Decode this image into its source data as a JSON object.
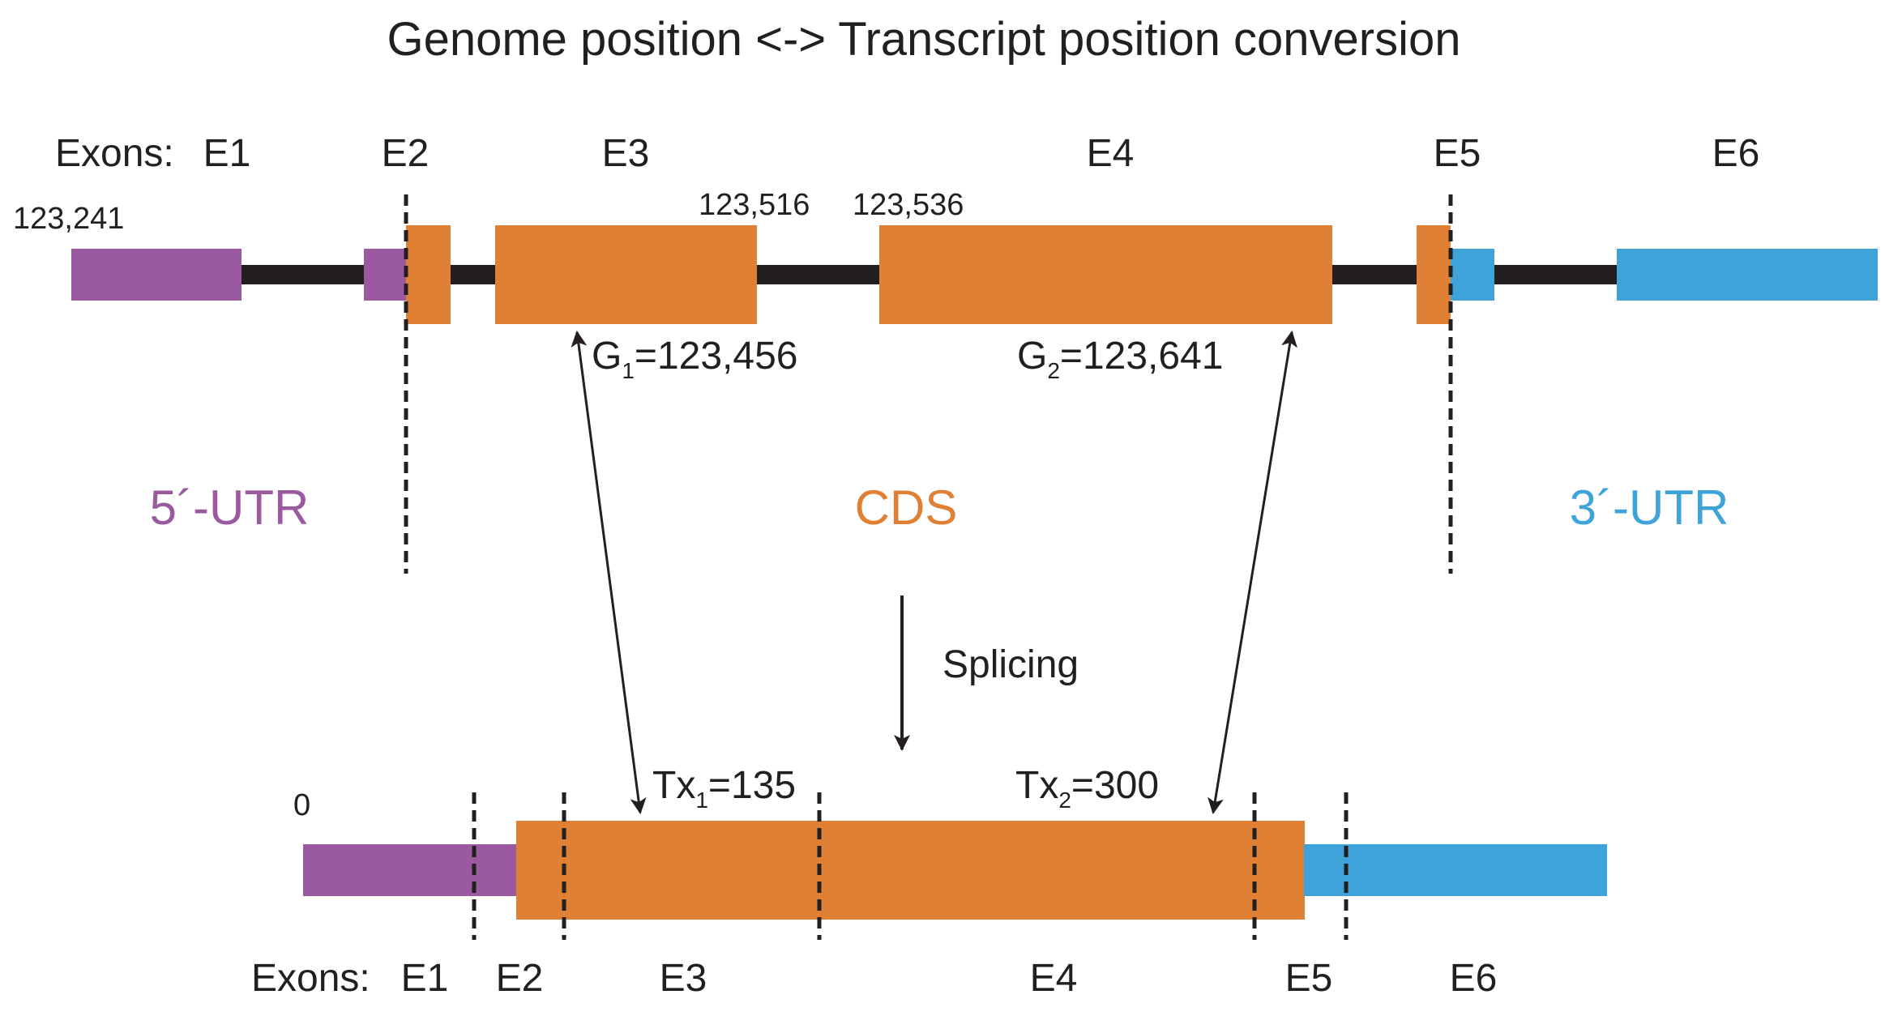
{
  "title": "Genome position <-> Transcript position conversion",
  "colors": {
    "utr5": "#9b59a0",
    "cds": "#e08034",
    "utr3": "#3ea3d9",
    "intron": "#231f20",
    "text": "#231f20"
  },
  "genome": {
    "exons_label": "Exons:",
    "exons": [
      "E1",
      "E2",
      "E3",
      "E4",
      "E5",
      "E6"
    ],
    "start_coord": "123,241",
    "e3_end_coord": "123,516",
    "e4_start_coord": "123,536",
    "g1": {
      "letter": "G",
      "sub": "1",
      "value": "=123,456"
    },
    "g2": {
      "letter": "G",
      "sub": "2",
      "value": "=123,641"
    }
  },
  "regions": {
    "utr5": "5´-UTR",
    "cds": "CDS",
    "utr3": "3´-UTR"
  },
  "splicing": "Splicing",
  "transcript": {
    "start_coord": "0",
    "exons_label": "Exons:",
    "exons": [
      "E1",
      "E2",
      "E3",
      "E4",
      "E5",
      "E6"
    ],
    "tx1": {
      "letter": "Tx",
      "sub": "1",
      "value": "=135"
    },
    "tx2": {
      "letter": "Tx",
      "sub": "2",
      "value": "=300"
    }
  }
}
